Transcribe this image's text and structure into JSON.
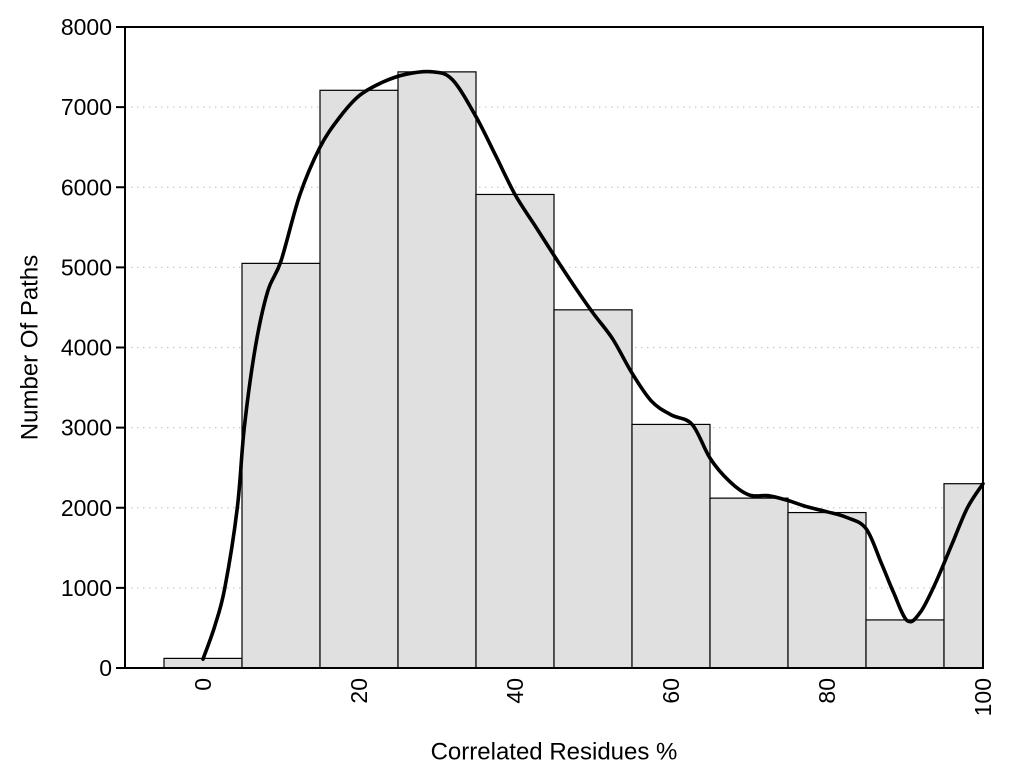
{
  "figure": {
    "background": "#ffffff",
    "axis_color": "#000000",
    "text_color": "#000000",
    "bar_fill": "#e0e0e0",
    "bar_stroke": "#000000",
    "grid_color": "#c9c9c9",
    "curve_color": "#000000"
  },
  "chart_data": {
    "type": "bar",
    "subtype": "histogram_with_density_curve",
    "title": "",
    "xlabel": "Correlated Residues %",
    "ylabel": "Number Of Paths",
    "xlim": [
      -10,
      100
    ],
    "ylim": [
      0,
      8000
    ],
    "x_ticks": [
      0,
      20,
      40,
      60,
      80,
      100
    ],
    "x_tick_labels": [
      "0",
      "20",
      "40",
      "60",
      "80",
      "100"
    ],
    "y_ticks": [
      0,
      1000,
      2000,
      3000,
      4000,
      5000,
      6000,
      7000,
      8000
    ],
    "y_tick_labels": [
      "0",
      "1000",
      "2000",
      "3000",
      "4000",
      "5000",
      "6000",
      "7000",
      "8000"
    ],
    "grid": "horizontal-dotted",
    "legend": "none",
    "bin_width": 10,
    "bin_centers": [
      0,
      10,
      20,
      30,
      40,
      50,
      60,
      70,
      80,
      90,
      100
    ],
    "bin_counts": [
      120,
      5050,
      7210,
      7440,
      5910,
      4470,
      3040,
      2120,
      1940,
      600,
      2300
    ],
    "bins": [
      {
        "center": 0,
        "count": 120
      },
      {
        "center": 10,
        "count": 5050
      },
      {
        "center": 20,
        "count": 7210
      },
      {
        "center": 30,
        "count": 7440
      },
      {
        "center": 40,
        "count": 5910
      },
      {
        "center": 50,
        "count": 4470
      },
      {
        "center": 60,
        "count": 3040
      },
      {
        "center": 70,
        "count": 2120
      },
      {
        "center": 80,
        "count": 1940
      },
      {
        "center": 90,
        "count": 600
      },
      {
        "center": 100,
        "count": 2300
      }
    ],
    "curve": [
      [
        0,
        110
      ],
      [
        1.5,
        520
      ],
      [
        2.8,
        1000
      ],
      [
        4.4,
        2000
      ],
      [
        5.3,
        3000
      ],
      [
        6.7,
        4000
      ],
      [
        8.3,
        4700
      ],
      [
        10,
        5080
      ],
      [
        12.4,
        5900
      ],
      [
        15,
        6500
      ],
      [
        17.5,
        6870
      ],
      [
        20,
        7140
      ],
      [
        23,
        7310
      ],
      [
        26,
        7410
      ],
      [
        29.5,
        7440
      ],
      [
        32,
        7340
      ],
      [
        35,
        6880
      ],
      [
        37.5,
        6400
      ],
      [
        40,
        5910
      ],
      [
        42.5,
        5530
      ],
      [
        45,
        5150
      ],
      [
        47.5,
        4780
      ],
      [
        50,
        4430
      ],
      [
        52.5,
        4110
      ],
      [
        55,
        3680
      ],
      [
        57.5,
        3330
      ],
      [
        60,
        3160
      ],
      [
        62.7,
        3040
      ],
      [
        65,
        2620
      ],
      [
        67.5,
        2330
      ],
      [
        70,
        2160
      ],
      [
        72.5,
        2150
      ],
      [
        75,
        2090
      ],
      [
        77.5,
        2010
      ],
      [
        80,
        1950
      ],
      [
        82.5,
        1880
      ],
      [
        85,
        1740
      ],
      [
        87,
        1300
      ],
      [
        88.5,
        950
      ],
      [
        90.3,
        590
      ],
      [
        92,
        700
      ],
      [
        94,
        1080
      ],
      [
        96,
        1540
      ],
      [
        98,
        2000
      ],
      [
        100,
        2300
      ]
    ]
  }
}
